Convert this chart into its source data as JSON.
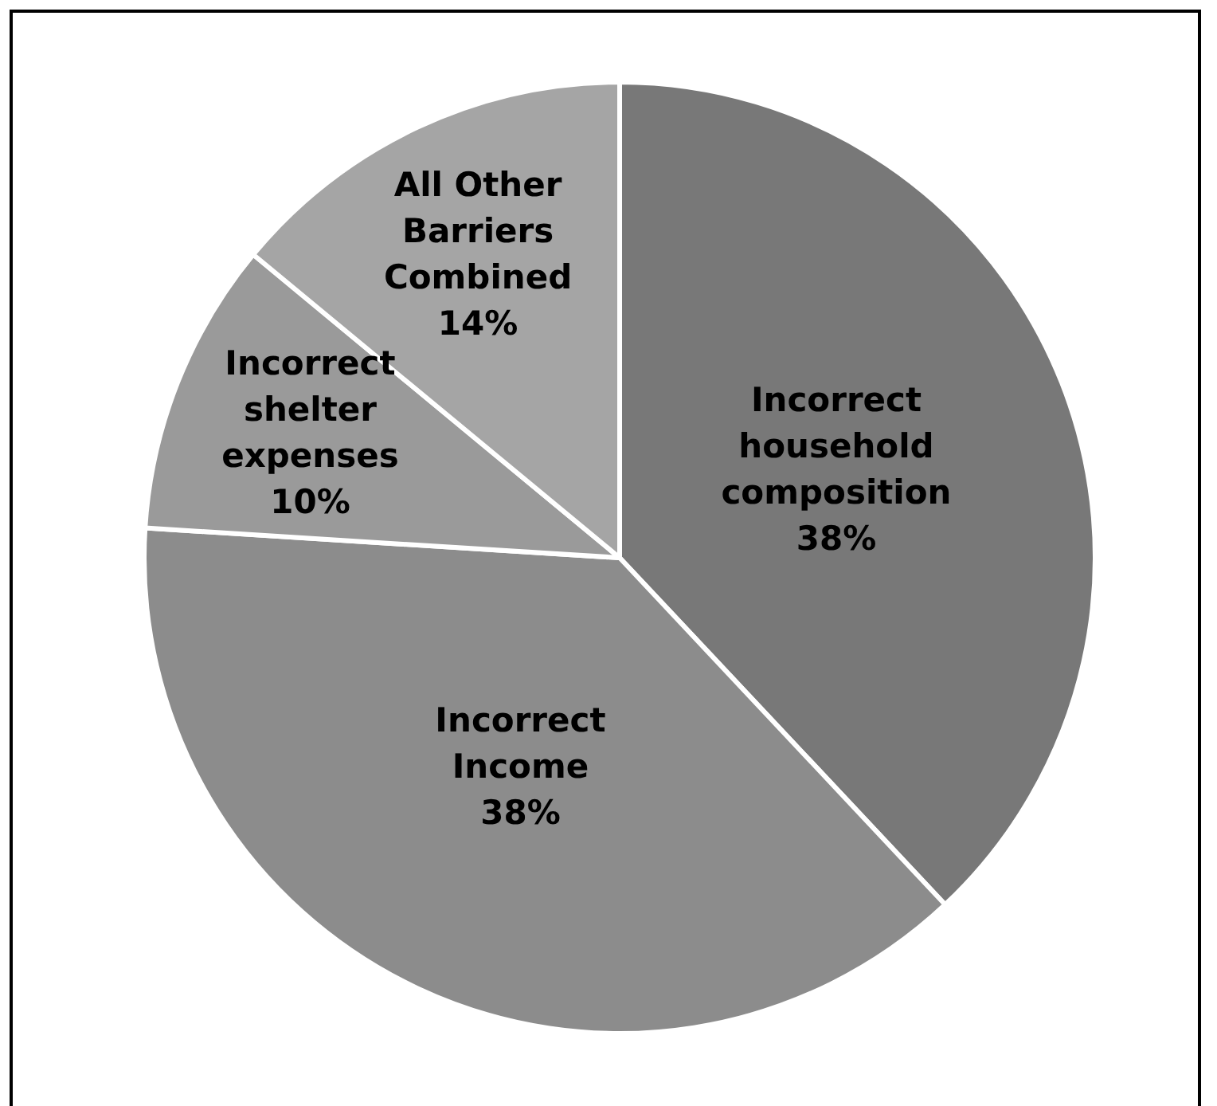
{
  "chart_data": {
    "type": "pie",
    "categories": [
      "Incorrect household composition",
      "Incorrect Income",
      "Incorrect shelter expenses",
      "All Other Barriers Combined"
    ],
    "values": [
      38,
      38,
      10,
      14
    ],
    "colors": [
      "#787878",
      "#8c8c8c",
      "#9a9a9a",
      "#a5a5a5"
    ],
    "value_labels": [
      "38%",
      "38%",
      "10%",
      "14%"
    ]
  }
}
